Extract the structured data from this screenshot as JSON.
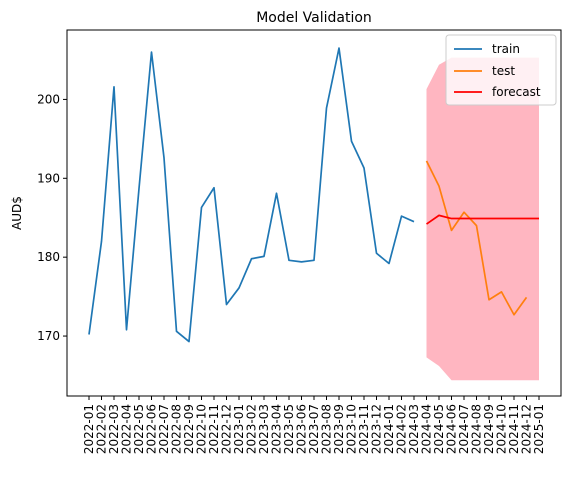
{
  "chart_data": {
    "type": "line",
    "title": "Model Validation",
    "xlabel": "",
    "ylabel": "AUD$",
    "ylim": [
      162.4,
      208.8
    ],
    "yticks": [
      170,
      180,
      190,
      200
    ],
    "x": [
      "2022-01",
      "2022-02",
      "2022-03",
      "2022-04",
      "2022-05",
      "2022-06",
      "2022-07",
      "2022-08",
      "2022-09",
      "2022-10",
      "2022-11",
      "2022-12",
      "2023-01",
      "2023-02",
      "2023-03",
      "2023-04",
      "2023-05",
      "2023-06",
      "2023-07",
      "2023-08",
      "2023-09",
      "2023-10",
      "2023-11",
      "2023-12",
      "2024-01",
      "2024-02",
      "2024-03",
      "2024-04",
      "2024-05",
      "2024-06",
      "2024-07",
      "2024-08",
      "2024-09",
      "2024-10",
      "2024-11",
      "2024-12",
      "2025-01"
    ],
    "grid": false,
    "legend_position": "top-right",
    "confidence_band": {
      "color": "#ffb6c1",
      "x": [
        "2024-04",
        "2024-05",
        "2024-06",
        "2024-07",
        "2024-08",
        "2024-09",
        "2024-10",
        "2024-11",
        "2024-12",
        "2025-01"
      ],
      "lower": [
        167.3,
        166.2,
        164.4,
        164.4,
        164.4,
        164.4,
        164.4,
        164.4,
        164.4,
        164.4
      ],
      "upper": [
        201.3,
        204.4,
        205.3,
        205.3,
        205.3,
        205.3,
        205.3,
        205.3,
        205.3,
        205.3
      ]
    },
    "series": [
      {
        "name": "train",
        "color": "#1f77b4",
        "x": [
          "2022-01",
          "2022-02",
          "2022-03",
          "2022-04",
          "2022-05",
          "2022-06",
          "2022-07",
          "2022-08",
          "2022-09",
          "2022-10",
          "2022-11",
          "2022-12",
          "2023-01",
          "2023-02",
          "2023-03",
          "2023-04",
          "2023-05",
          "2023-06",
          "2023-07",
          "2023-08",
          "2023-09",
          "2023-10",
          "2023-11",
          "2023-12",
          "2024-01",
          "2024-02",
          "2024-03"
        ],
        "values": [
          170.2,
          182.0,
          201.6,
          170.8,
          188.7,
          206.0,
          192.6,
          170.6,
          169.3,
          186.3,
          188.8,
          174.0,
          176.1,
          179.8,
          180.1,
          188.1,
          179.6,
          179.4,
          179.6,
          198.9,
          206.5,
          194.7,
          191.3,
          180.5,
          179.2,
          185.2,
          184.5
        ]
      },
      {
        "name": "test",
        "color": "#ff7f0e",
        "x": [
          "2024-04",
          "2024-05",
          "2024-06",
          "2024-07",
          "2024-08",
          "2024-09",
          "2024-10",
          "2024-11",
          "2024-12"
        ],
        "values": [
          192.2,
          189.0,
          183.4,
          185.7,
          184.0,
          174.6,
          175.6,
          172.7,
          174.9
        ]
      },
      {
        "name": "forecast",
        "color": "#ff0000",
        "x": [
          "2024-04",
          "2024-05",
          "2024-06",
          "2024-07",
          "2024-08",
          "2024-09",
          "2024-10",
          "2024-11",
          "2024-12",
          "2025-01"
        ],
        "values": [
          184.2,
          185.3,
          184.9,
          184.9,
          184.9,
          184.9,
          184.9,
          184.9,
          184.9,
          184.9
        ]
      }
    ]
  }
}
